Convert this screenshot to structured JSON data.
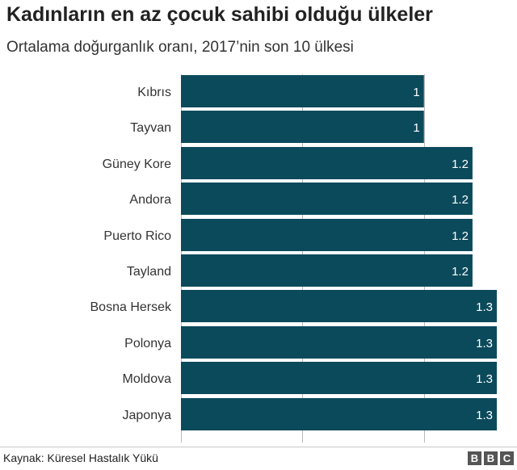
{
  "header": {
    "title": "Kadınların en az çocuk sahibi olduğu ülkeler",
    "subtitle": "Ortalama doğurganlık oranı, 2017’nin son 10 ülkesi"
  },
  "chart_data": {
    "type": "bar",
    "orientation": "horizontal",
    "categories": [
      "Kıbrıs",
      "Tayvan",
      "Güney Kore",
      "Andora",
      "Puerto Rico",
      "Tayland",
      "Bosna Hersek",
      "Polonya",
      "Moldova",
      "Japonya"
    ],
    "values": [
      1,
      1,
      1.2,
      1.2,
      1.2,
      1.2,
      1.3,
      1.3,
      1.3,
      1.3
    ],
    "value_labels": [
      "1",
      "1",
      "1.2",
      "1.2",
      "1.2",
      "1.2",
      "1.3",
      "1.3",
      "1.3",
      "1.3"
    ],
    "xlim": [
      0,
      1.3
    ],
    "gridlines": [
      0,
      0.5,
      1
    ],
    "bar_color": "#0b4a5b",
    "grid_color": "#b9b9b9"
  },
  "footer": {
    "source": "Kaynak: Küresel Hastalık Yükü",
    "logo_letters": [
      "B",
      "B",
      "C"
    ]
  }
}
